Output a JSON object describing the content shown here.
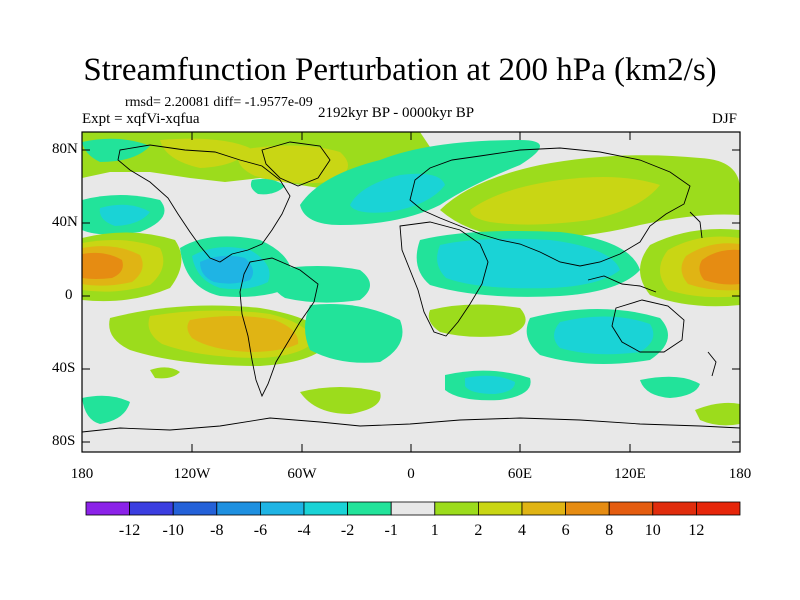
{
  "title": "Streamfunction Perturbation at 200 hPa (km2/s)",
  "stats": {
    "rmsd_text": "rmsd= 2.20081 diff= -1.9577e-09"
  },
  "experiment": "Expt = xqfVi-xqfua",
  "period": "2192kyr BP - 0000kyr BP",
  "season": "DJF",
  "lat_labels": [
    "80N",
    "40N",
    "0",
    "40S",
    "80S"
  ],
  "lon_labels": [
    "180",
    "120W",
    "60W",
    "0",
    "60E",
    "120E",
    "180"
  ],
  "colorbar": {
    "labels": [
      "-12",
      "-10",
      "-8",
      "-6",
      "-4",
      "-2",
      "-1",
      "1",
      "2",
      "4",
      "6",
      "8",
      "10",
      "12"
    ],
    "colors": [
      "#8b22e8",
      "#3b3ee0",
      "#2461d8",
      "#1e90e0",
      "#1fb4e4",
      "#1ad3d6",
      "#22e39a",
      "#e8e8e8",
      "#9cdc1c",
      "#c9d614",
      "#e0b414",
      "#e68c12",
      "#e45c10",
      "#e02c0c",
      "#e6260a"
    ]
  },
  "field_colors": {
    "neutral": "#e8e8e8",
    "pos_1": "#9cdc1c",
    "pos_2": "#c9d614",
    "pos_4": "#e0b414",
    "pos_6": "#e68c12",
    "pos_8": "#e45c10",
    "neg_1": "#22e39a",
    "neg_2": "#1ad3d6",
    "neg_4": "#1fb4e4",
    "neg_6": "#1e90e0"
  }
}
